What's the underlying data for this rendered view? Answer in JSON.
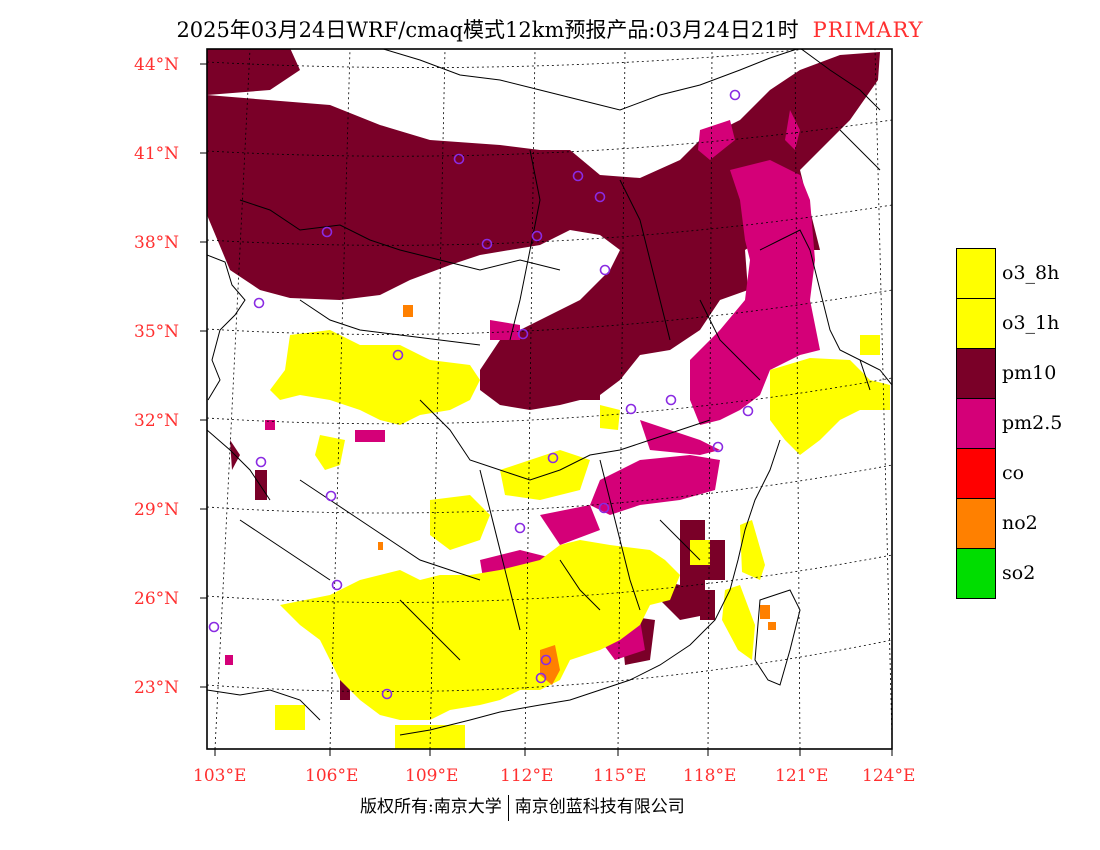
{
  "title": {
    "main": "2025年03月24日WRF/cmaq模式12km预报产品:03月24日21时",
    "tag": "PRIMARY"
  },
  "axes": {
    "lat_labels": [
      "44°N",
      "41°N",
      "38°N",
      "35°N",
      "32°N",
      "29°N",
      "26°N",
      "23°N"
    ],
    "lon_labels": [
      "103°E",
      "106°E",
      "109°E",
      "112°E",
      "115°E",
      "118°E",
      "121°E",
      "124°E"
    ]
  },
  "legend": [
    {
      "label": "o3_8h",
      "color": "#ffff00"
    },
    {
      "label": "o3_1h",
      "color": "#ffff00"
    },
    {
      "label": "pm10",
      "color": "#7a0028"
    },
    {
      "label": "pm2.5",
      "color": "#d40078"
    },
    {
      "label": "co",
      "color": "#ff0000"
    },
    {
      "label": "no2",
      "color": "#ff8000"
    },
    {
      "label": "so2",
      "color": "#00dd00"
    }
  ],
  "footer": {
    "left": "版权所有:南京大学",
    "right": "南京创蓝科技有限公司"
  },
  "map": {
    "colors": {
      "pm10": "#7a0028",
      "pm25": "#d40078",
      "o3": "#ffff00",
      "no2": "#ff8000",
      "station": "#8a2be2"
    },
    "station_count": 25
  }
}
